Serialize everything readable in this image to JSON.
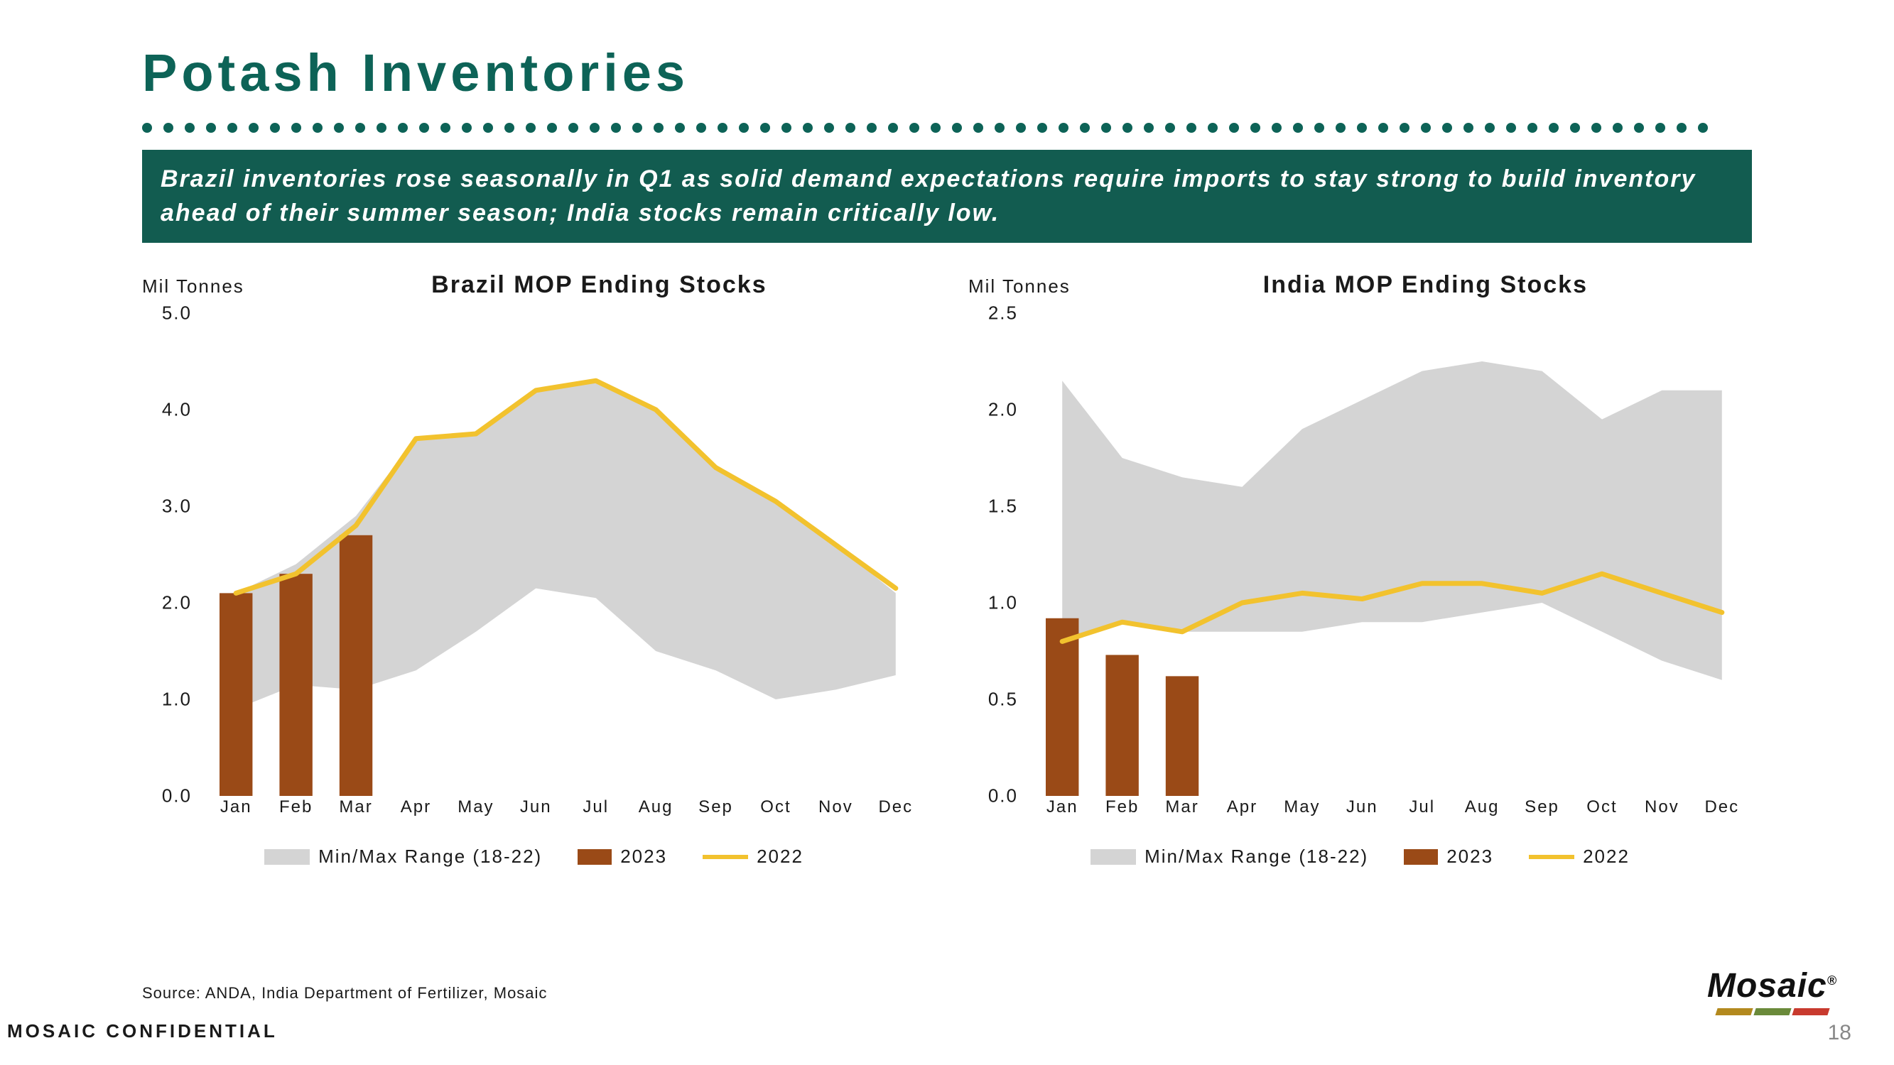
{
  "colors": {
    "title": "#0d6357",
    "dot": "#0d6357",
    "banner_bg": "#125c50",
    "banner_text": "#ffffff",
    "range_fill": "#d4d4d4",
    "bar_fill": "#9a4a17",
    "line_stroke": "#f2c22e",
    "axis_text": "#1a1a1a",
    "page_num": "#888888",
    "logo_bar_left": "#b3891e",
    "logo_bar_mid": "#6a8a3a",
    "logo_bar_right": "#c83a2e"
  },
  "title": "Potash Inventories",
  "subtitle": "Brazil inventories rose seasonally in Q1 as solid demand expectations require imports to stay strong to build inventory ahead of their summer season;  India stocks remain critically low.",
  "months": [
    "Jan",
    "Feb",
    "Mar",
    "Apr",
    "May",
    "Jun",
    "Jul",
    "Aug",
    "Sep",
    "Oct",
    "Nov",
    "Dec"
  ],
  "legend": {
    "range": "Min/Max Range (18-22)",
    "bar": "2023",
    "line": "2022"
  },
  "charts": [
    {
      "unit": "Mil Tonnes",
      "title": "Brazil MOP Ending Stocks",
      "ylim": [
        0.0,
        5.0
      ],
      "ytick_step": 1.0,
      "range_max": [
        2.1,
        2.4,
        2.9,
        3.7,
        3.75,
        4.2,
        4.3,
        4.0,
        3.4,
        3.05,
        2.6,
        2.1
      ],
      "range_min": [
        0.9,
        1.15,
        1.1,
        1.3,
        1.7,
        2.15,
        2.05,
        1.5,
        1.3,
        1.0,
        1.1,
        1.25
      ],
      "line_2022": [
        2.1,
        2.3,
        2.8,
        3.7,
        3.75,
        4.2,
        4.3,
        4.0,
        3.4,
        3.05,
        2.6,
        2.15
      ],
      "bars_2023": [
        2.1,
        2.3,
        2.7
      ]
    },
    {
      "unit": "Mil Tonnes",
      "title": "India MOP Ending Stocks",
      "ylim": [
        0.0,
        2.5
      ],
      "ytick_step": 0.5,
      "range_max": [
        2.15,
        1.75,
        1.65,
        1.6,
        1.9,
        2.05,
        2.2,
        2.25,
        2.2,
        1.95,
        2.1,
        2.1
      ],
      "range_min": [
        0.8,
        0.9,
        0.85,
        0.85,
        0.85,
        0.9,
        0.9,
        0.95,
        1.0,
        0.85,
        0.7,
        0.6
      ],
      "line_2022": [
        0.8,
        0.9,
        0.85,
        1.0,
        1.05,
        1.02,
        1.1,
        1.1,
        1.05,
        1.15,
        1.05,
        0.95
      ],
      "bars_2023": [
        0.92,
        0.73,
        0.62
      ]
    }
  ],
  "source": "Source: ANDA, India Department of Fertilizer, Mosaic",
  "confidential": "MOSAIC CONFIDENTIAL",
  "page_number": "18",
  "logo_name": "Mosaic",
  "dots_count": 74
}
